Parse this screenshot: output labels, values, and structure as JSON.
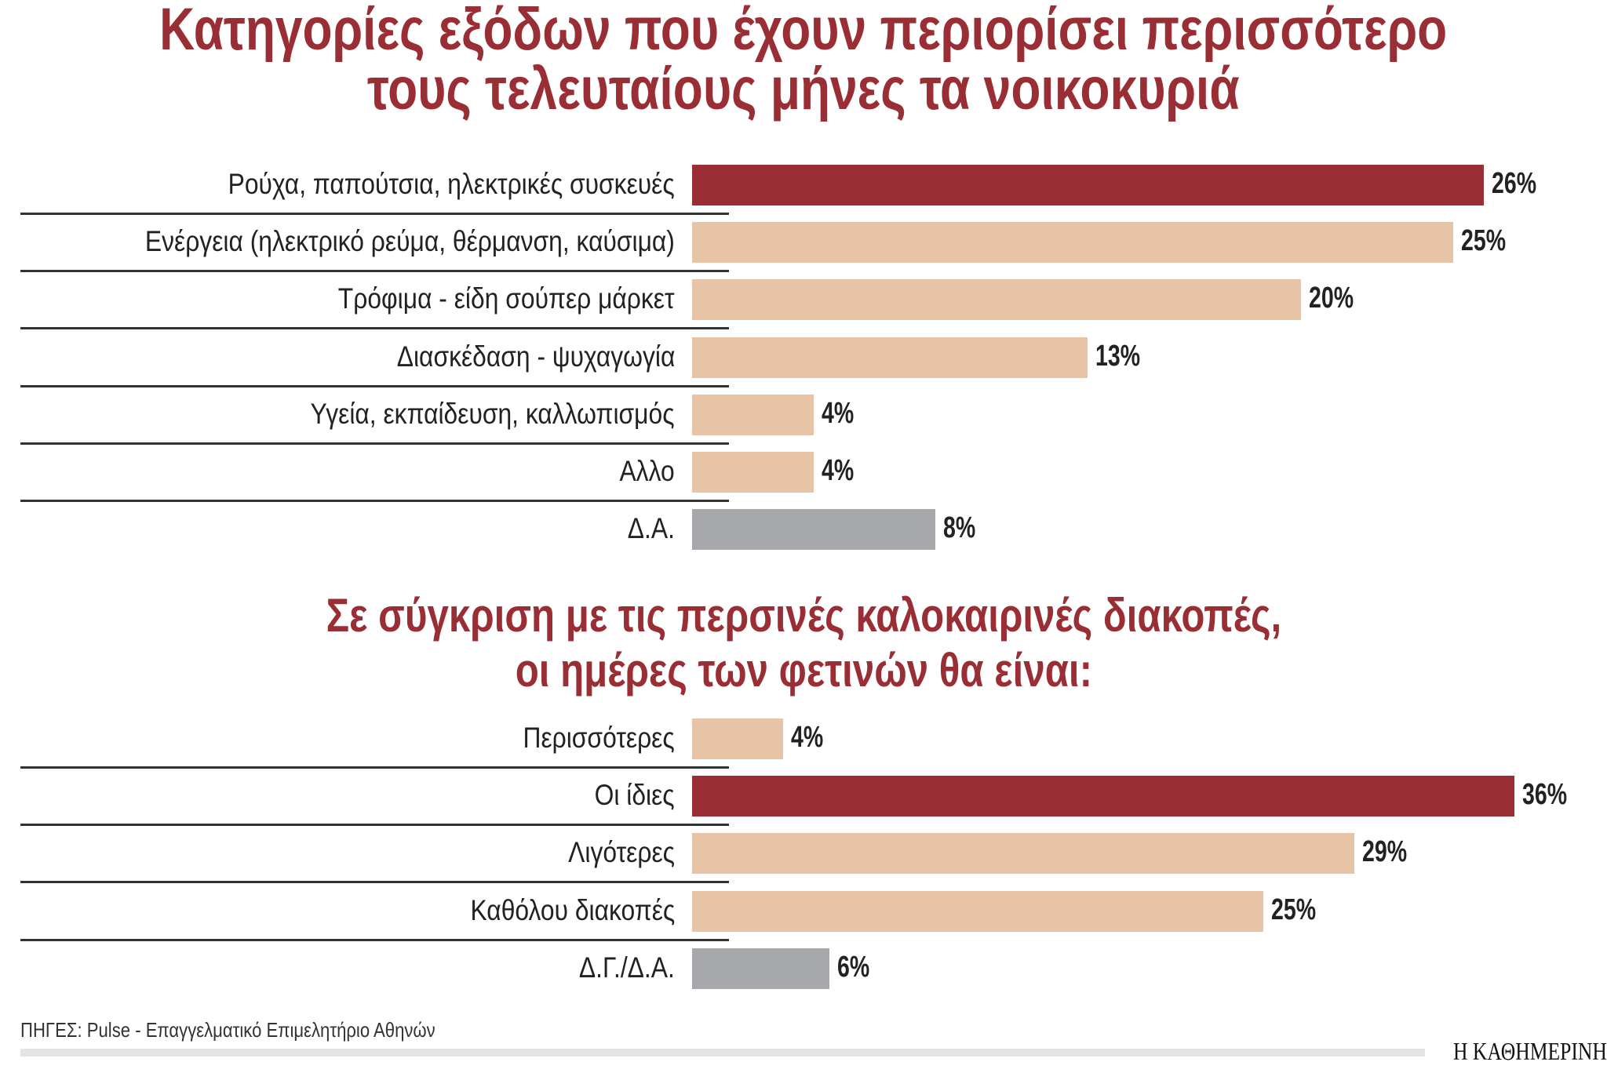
{
  "colors": {
    "highlight": "#992e35",
    "default": "#e6c4a5",
    "no_answer": "#a7a8ab"
  },
  "chart_data": [
    {
      "type": "bar",
      "orientation": "horizontal",
      "title": "Κατηγορίες εξόδων που έχουν περιορίσει περισσότερο τους τελευταίους μήνες τα νοικοκυριά",
      "title_lines": [
        "Κατηγορίες εξόδων που έχουν περιορίσει περισσότερο",
        "τους τελευταίους μήνες τα νοικοκυριά"
      ],
      "categories": [
        "Ρούχα, παπούτσια, ηλεκτρικές συσκευές",
        "Ενέργεια (ηλεκτρικό ρεύμα, θέρμανση, καύσιμα)",
        "Τρόφιμα - είδη σούπερ μάρκετ",
        "Διασκέδαση - ψυχαγωγία",
        "Υγεία, εκπαίδευση, καλλωπισμός",
        "Αλλο",
        "Δ.Α."
      ],
      "values": [
        26,
        25,
        20,
        13,
        4,
        4,
        8
      ],
      "value_labels": [
        "26%",
        "25%",
        "20%",
        "13%",
        "4%",
        "4%",
        "8%"
      ],
      "bar_colors": [
        "highlight",
        "default",
        "default",
        "default",
        "default",
        "default",
        "no_answer"
      ],
      "unit": "%"
    },
    {
      "type": "bar",
      "orientation": "horizontal",
      "title": "Σε σύγκριση με τις περσινές καλοκαιρινές διακοπές, οι ημέρες των φετινών θα είναι:",
      "title_lines": [
        "Σε σύγκριση με τις περσινές καλοκαιρινές διακοπές,",
        "οι ημέρες των φετινών θα είναι:"
      ],
      "categories": [
        "Περισσότερες",
        "Οι ίδιες",
        "Λιγότερες",
        "Καθόλου διακοπές",
        "Δ.Γ./Δ.Α."
      ],
      "values": [
        4,
        36,
        29,
        25,
        6
      ],
      "value_labels": [
        "4%",
        "36%",
        "29%",
        "25%",
        "6%"
      ],
      "bar_colors": [
        "default",
        "highlight",
        "default",
        "default",
        "no_answer"
      ],
      "unit": "%"
    }
  ],
  "footer": {
    "source": "ΠΗΓΕΣ: Pulse - Επαγγελματικό Επιμελητήριο Αθηνών",
    "logo": "Η ΚΑΘΗΜΕΡΙΝΗ"
  }
}
